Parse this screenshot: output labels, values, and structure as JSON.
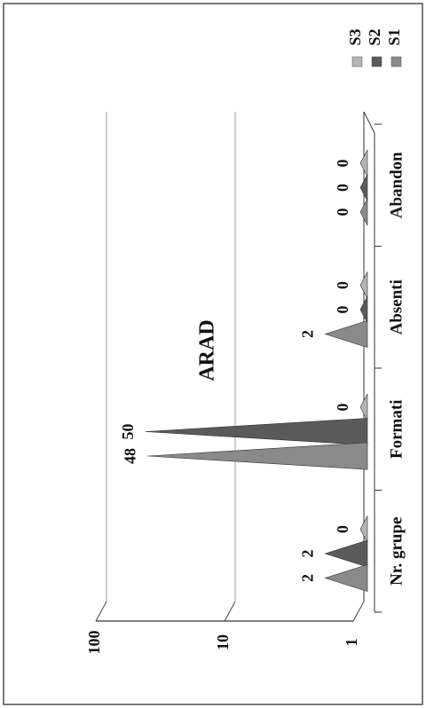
{
  "chart_data": {
    "type": "area",
    "title": "ARAD",
    "categories": [
      "Nr. grupe",
      "Formati",
      "Absenti",
      "Abandon"
    ],
    "series": [
      {
        "name": "S1",
        "values": [
          2,
          48,
          2,
          0
        ],
        "labels": [
          "2",
          "48",
          "2",
          "0"
        ],
        "color": "#8a8a8a"
      },
      {
        "name": "S2",
        "values": [
          2,
          50,
          0,
          0
        ],
        "labels": [
          "2",
          "50",
          "0",
          "0"
        ],
        "color": "#5a5a5a"
      },
      {
        "name": "S3",
        "values": [
          0,
          0,
          0,
          0
        ],
        "labels": [
          "0",
          "0",
          "0",
          "0"
        ],
        "color": "#b4b4b4"
      }
    ],
    "y_scale": "log",
    "ylim": [
      1,
      100
    ],
    "yticks": [
      "1",
      "10",
      "100"
    ],
    "grid": true,
    "legend_position": "top-right"
  }
}
